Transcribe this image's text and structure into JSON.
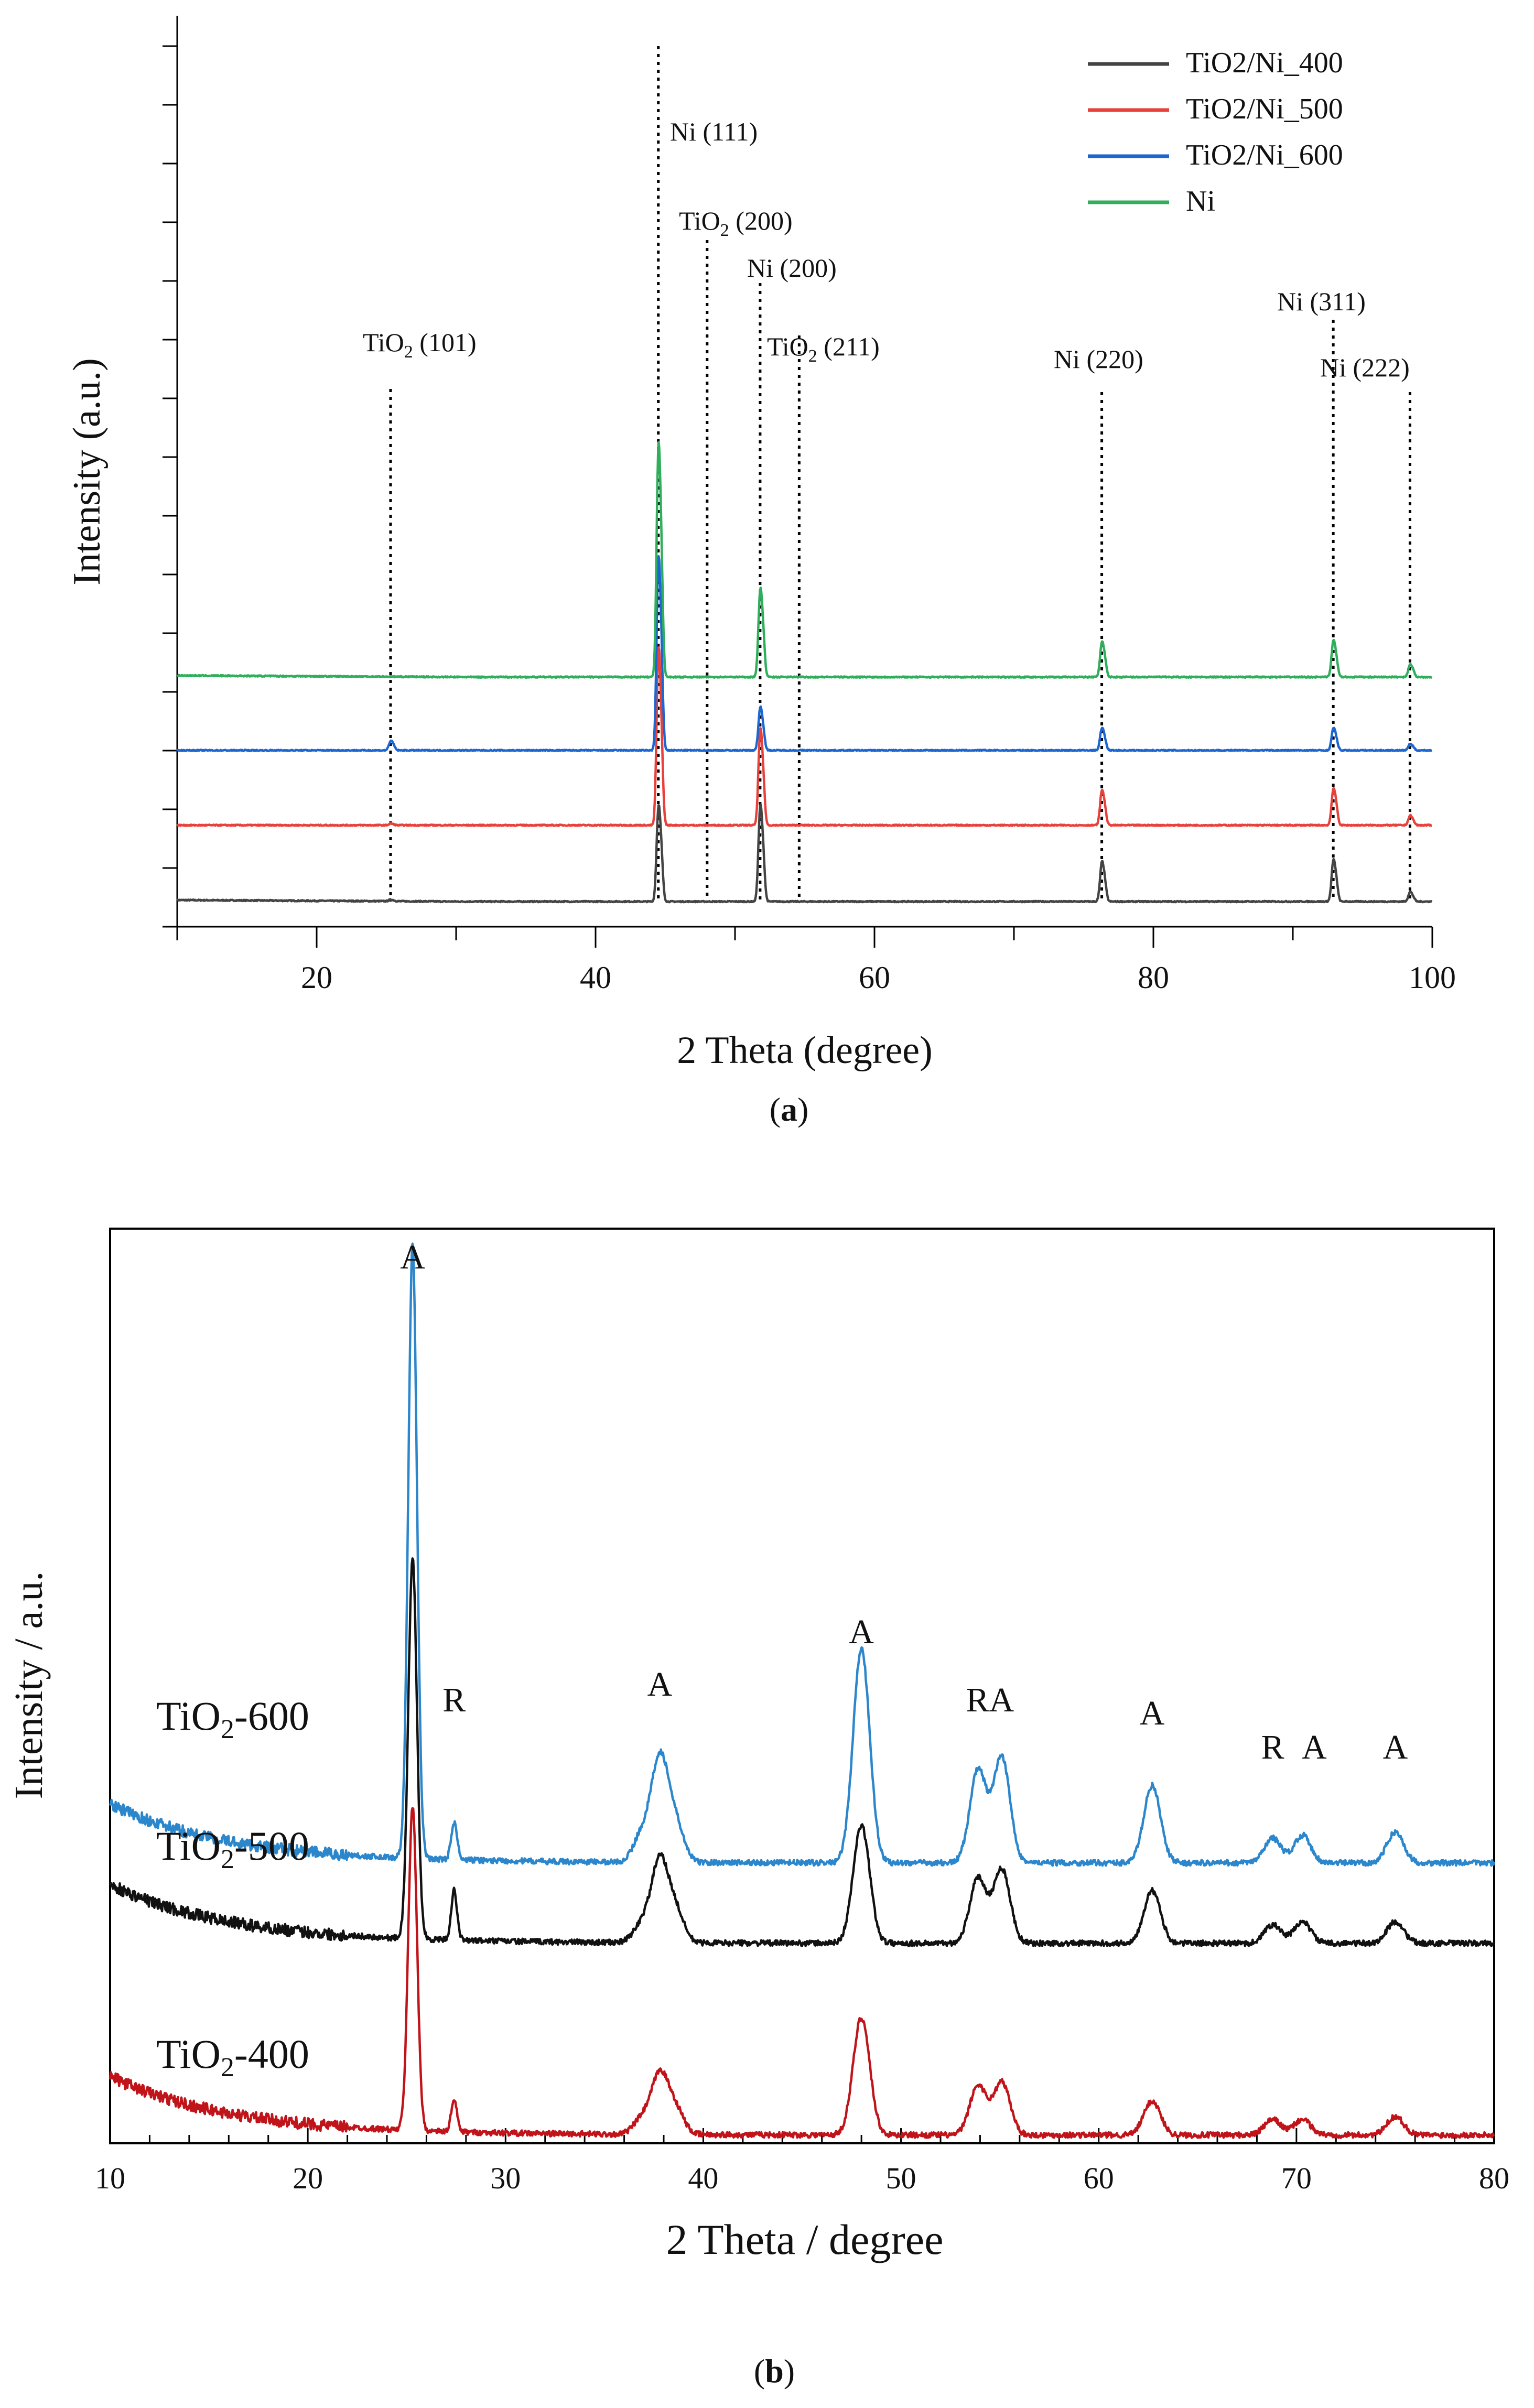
{
  "chart_data": [
    {
      "type": "line",
      "panel_label": "a",
      "xlabel": "2 Theta (degree)",
      "ylabel": "Intensity (a.u.)",
      "xlim": [
        10,
        100
      ],
      "x_ticks": [
        20,
        40,
        60,
        80,
        100
      ],
      "legend_position": "top-right",
      "colors": {
        "TiO2/Ni_400": "#444444",
        "TiO2/Ni_500": "#e8413b",
        "TiO2/Ni_600": "#1c66d2",
        "Ni": "#2fae5b"
      },
      "series": [
        {
          "name": "TiO2/Ni_400",
          "offset": 0,
          "baseline": 0.1,
          "peaks": [
            [
              25.3,
              0.1
            ],
            [
              44.5,
              6.0
            ],
            [
              51.8,
              6.0
            ],
            [
              76.3,
              2.5
            ],
            [
              92.9,
              2.6
            ],
            [
              98.4,
              0.6
            ]
          ]
        },
        {
          "name": "TiO2/Ni_500",
          "offset": 5.2,
          "baseline": 0.0,
          "peaks": [
            [
              25.3,
              0.1
            ],
            [
              44.5,
              11.0
            ],
            [
              51.8,
              6.0
            ],
            [
              76.3,
              2.2
            ],
            [
              92.9,
              2.3
            ],
            [
              98.4,
              0.6
            ]
          ]
        },
        {
          "name": "TiO2/Ni_600",
          "offset": 10.3,
          "baseline": 0.0,
          "peaks": [
            [
              25.3,
              0.6
            ],
            [
              44.5,
              12.0
            ],
            [
              51.8,
              2.7
            ],
            [
              76.3,
              1.4
            ],
            [
              92.9,
              1.4
            ],
            [
              98.4,
              0.4
            ]
          ]
        },
        {
          "name": "Ni",
          "offset": 15.3,
          "baseline": 0.1,
          "peaks": [
            [
              44.5,
              14.5
            ],
            [
              51.8,
              5.5
            ],
            [
              76.3,
              2.2
            ],
            [
              92.9,
              2.3
            ],
            [
              98.4,
              0.8
            ]
          ]
        }
      ],
      "annotations": [
        {
          "label": "TiO",
          "sub": "2",
          "rest": " (101)",
          "x": 25.3
        },
        {
          "label": "Ni (111)",
          "sub": "",
          "rest": "",
          "x": 44.5
        },
        {
          "label": "TiO",
          "sub": "2",
          "rest": " (200)",
          "x": 48.0
        },
        {
          "label": "Ni (200)",
          "sub": "",
          "rest": "",
          "x": 51.8
        },
        {
          "label": "TiO",
          "sub": "2",
          "rest": " (211)",
          "x": 54.6
        },
        {
          "label": "Ni (220)",
          "sub": "",
          "rest": "",
          "x": 76.3
        },
        {
          "label": "Ni (311)",
          "sub": "",
          "rest": "",
          "x": 92.9
        },
        {
          "label": "Ni (222)",
          "sub": "",
          "rest": "",
          "x": 98.4
        }
      ]
    },
    {
      "type": "line",
      "panel_label": "b",
      "xlabel": "2 Theta / degree",
      "ylabel": "Intensity / a.u.",
      "xlim": [
        10,
        80
      ],
      "x_ticks": [
        10,
        20,
        30,
        40,
        50,
        60,
        70,
        80
      ],
      "colors": {
        "TiO2-400": "#c0141a",
        "TiO2-500": "#111111",
        "TiO2-600": "#2b86cc"
      },
      "series": [
        {
          "name": "TiO2-400",
          "label": "TiO",
          "sub": "2",
          "rest": "-400",
          "offset": 0,
          "peaks": [
            [
              25.3,
              10.5
            ],
            [
              27.4,
              1.0
            ],
            [
              36.9,
              0.5
            ],
            [
              37.8,
              1.9
            ],
            [
              38.6,
              0.8
            ],
            [
              48.0,
              3.8
            ],
            [
              53.9,
              1.6
            ],
            [
              55.1,
              1.7
            ],
            [
              62.7,
              1.1
            ],
            [
              68.8,
              0.5
            ],
            [
              70.3,
              0.5
            ],
            [
              75.0,
              0.6
            ]
          ]
        },
        {
          "name": "TiO2-500",
          "label": "TiO",
          "sub": "2",
          "rest": "-500",
          "offset": 6.2,
          "peaks": [
            [
              25.3,
              12.3
            ],
            [
              27.4,
              1.6
            ],
            [
              36.9,
              0.6
            ],
            [
              37.8,
              2.6
            ],
            [
              38.6,
              1.0
            ],
            [
              48.0,
              3.8
            ],
            [
              53.9,
              2.1
            ],
            [
              55.1,
              2.4
            ],
            [
              62.7,
              1.7
            ],
            [
              68.8,
              0.6
            ],
            [
              70.3,
              0.7
            ],
            [
              75.0,
              0.7
            ]
          ]
        },
        {
          "name": "TiO2-600",
          "label": "TiO",
          "sub": "2",
          "rest": "-600",
          "offset": 8.8,
          "peaks": [
            [
              25.3,
              19.8
            ],
            [
              27.4,
              1.2
            ],
            [
              36.9,
              0.9
            ],
            [
              37.8,
              3.3
            ],
            [
              38.6,
              1.2
            ],
            [
              48.0,
              6.9
            ],
            [
              53.9,
              3.0
            ],
            [
              55.1,
              3.4
            ],
            [
              62.7,
              2.5
            ],
            [
              68.8,
              0.8
            ],
            [
              70.3,
              0.9
            ],
            [
              75.0,
              1.0
            ]
          ]
        }
      ],
      "annotations": [
        {
          "text": "A",
          "x": 25.3
        },
        {
          "text": "R",
          "x": 27.4
        },
        {
          "text": "A",
          "x": 37.8
        },
        {
          "text": "A",
          "x": 48.0
        },
        {
          "text": "RA",
          "x": 54.5
        },
        {
          "text": "A",
          "x": 62.7
        },
        {
          "text": "R",
          "x": 68.8
        },
        {
          "text": "A",
          "x": 70.9
        },
        {
          "text": "A",
          "x": 75.0
        }
      ]
    }
  ]
}
